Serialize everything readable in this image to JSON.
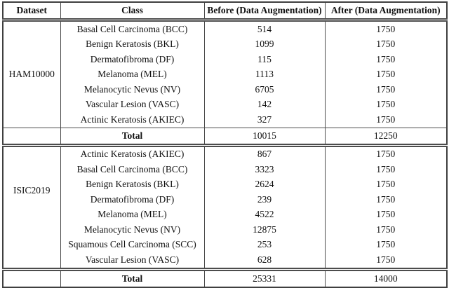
{
  "table": {
    "headers": {
      "dataset": "Dataset",
      "class": "Class",
      "before": "Before (Data Augmentation)",
      "after": "After (Data Augmentation)"
    },
    "sections": [
      {
        "dataset": "HAM10000",
        "rows": [
          {
            "class": "Basal Cell Carcinoma (BCC)",
            "before": "514",
            "after": "1750"
          },
          {
            "class": "Benign Keratosis (BKL)",
            "before": "1099",
            "after": "1750"
          },
          {
            "class": "Dermatofibroma (DF)",
            "before": "115",
            "after": "1750"
          },
          {
            "class": "Melanoma (MEL)",
            "before": "1113",
            "after": "1750"
          },
          {
            "class": "Melanocytic Nevus (NV)",
            "before": "6705",
            "after": "1750"
          },
          {
            "class": "Vascular Lesion (VASC)",
            "before": "142",
            "after": "1750"
          },
          {
            "class": "Actinic Keratosis (AKIEC)",
            "before": "327",
            "after": "1750"
          }
        ],
        "total": {
          "label": "Total",
          "before": "10015",
          "after": "12250"
        }
      },
      {
        "dataset": "ISIC2019",
        "rows": [
          {
            "class": "Actinic Keratosis (AKIEC)",
            "before": "867",
            "after": "1750"
          },
          {
            "class": "Basal Cell Carcinoma (BCC)",
            "before": "3323",
            "after": "1750"
          },
          {
            "class": "Benign Keratosis (BKL)",
            "before": "2624",
            "after": "1750"
          },
          {
            "class": "Dermatofibroma (DF)",
            "before": "239",
            "after": "1750"
          },
          {
            "class": "Melanoma (MEL)",
            "before": "4522",
            "after": "1750"
          },
          {
            "class": "Melanocytic Nevus (NV)",
            "before": "12875",
            "after": "1750"
          },
          {
            "class": "Squamous Cell Carcinoma (SCC)",
            "before": "253",
            "after": "1750"
          },
          {
            "class": "Vascular Lesion (VASC)",
            "before": "628",
            "after": "1750"
          }
        ],
        "total": {
          "label": "Total",
          "before": "25331",
          "after": "14000"
        }
      }
    ]
  }
}
